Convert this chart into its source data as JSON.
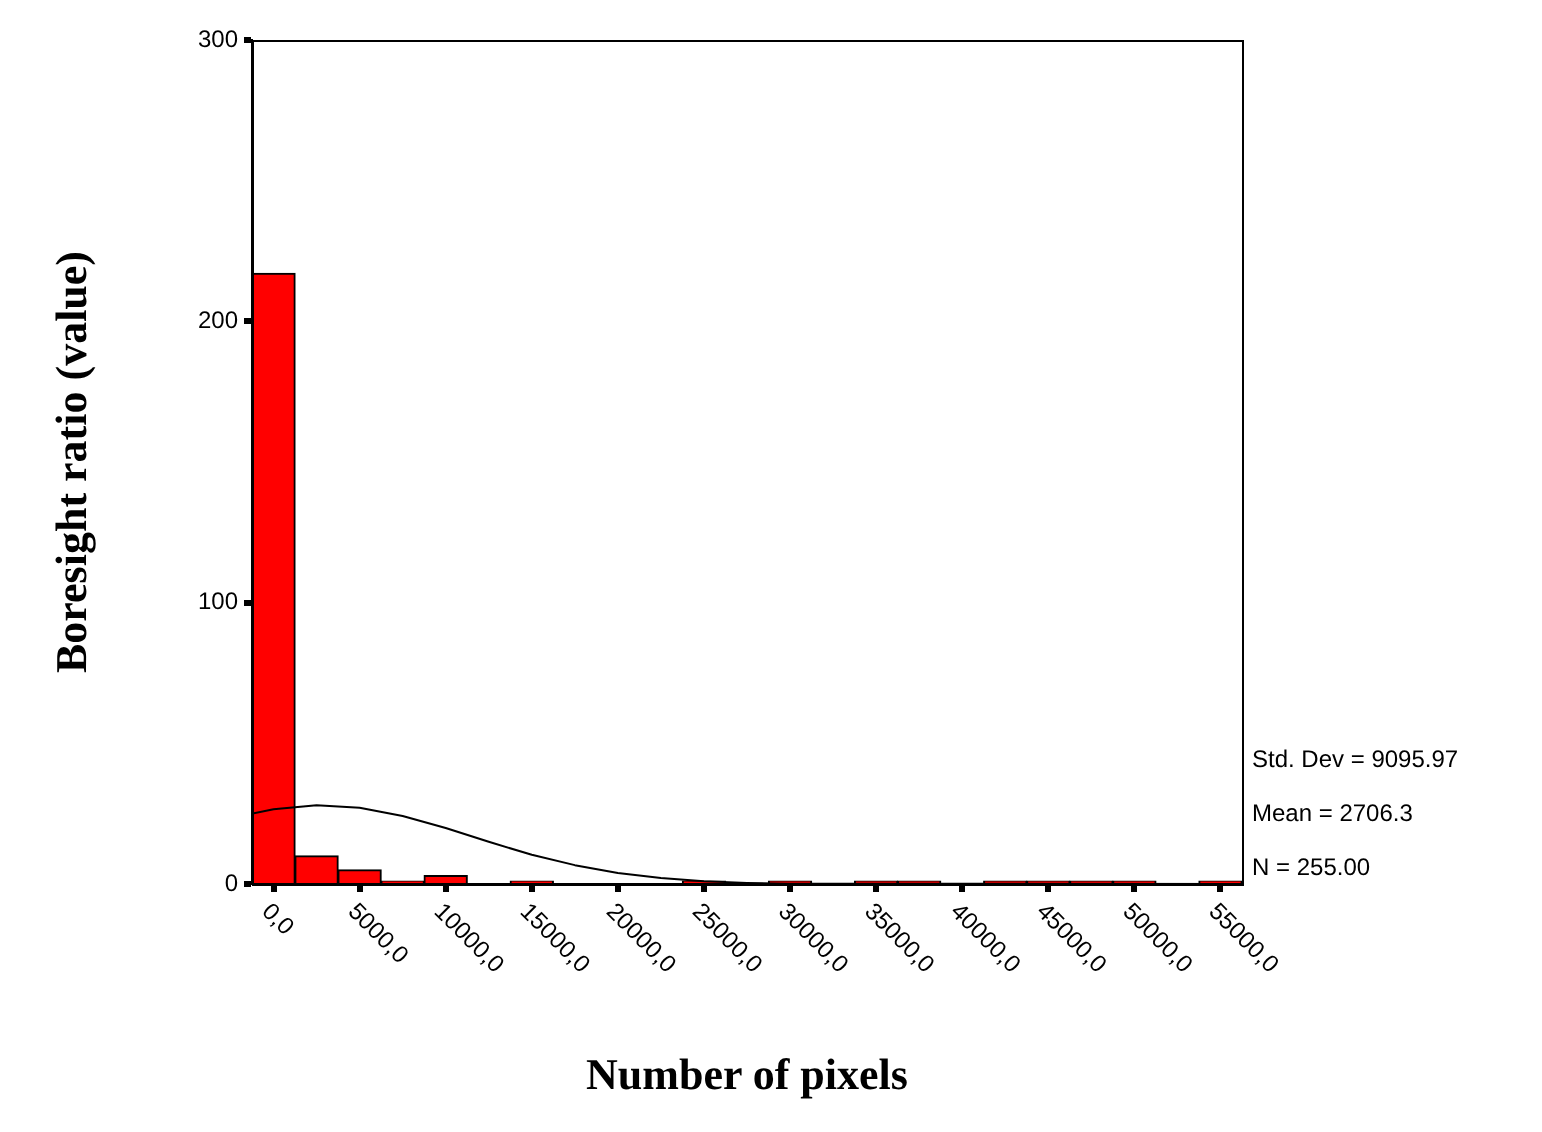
{
  "chart_data": {
    "type": "histogram",
    "xlabel": "Number of pixels",
    "ylabel": "Boresight ratio (value)",
    "bins": [
      -1250,
      1250,
      3750,
      6250,
      8750,
      11250,
      13750,
      16250,
      18750,
      21250,
      23750,
      26250,
      28750,
      31250,
      33750,
      36250,
      38750,
      41250,
      43750,
      46250,
      48750,
      51250,
      53750,
      56250
    ],
    "series": [
      {
        "type": "histogram",
        "color": "#ff0000",
        "values": [
          217,
          10,
          5,
          1,
          3,
          0,
          1,
          0,
          0,
          0,
          1,
          0,
          1,
          0,
          1,
          1,
          0,
          1,
          1,
          1,
          1,
          0,
          1
        ]
      },
      {
        "type": "line",
        "color": "#000000",
        "x": [
          -1250,
          0,
          2500,
          5000,
          7500,
          10000,
          12500,
          15000,
          17500,
          20000,
          22500,
          25000,
          27500,
          30000,
          56250
        ],
        "values": [
          25,
          26.6,
          28,
          27.1,
          24.2,
          19.9,
          15,
          10.4,
          6.7,
          3.9,
          2.1,
          1,
          0.4,
          0.1,
          0
        ]
      }
    ],
    "xlim": [
      -1250,
      56250
    ],
    "xticks": [
      {
        "value": 0,
        "label": "0,0"
      },
      {
        "value": 5000,
        "label": "5000,0"
      },
      {
        "value": 10000,
        "label": "10000,0"
      },
      {
        "value": 15000,
        "label": "15000,0"
      },
      {
        "value": 20000,
        "label": "20000,0"
      },
      {
        "value": 25000,
        "label": "25000,0"
      },
      {
        "value": 30000,
        "label": "30000,0"
      },
      {
        "value": 35000,
        "label": "35000,0"
      },
      {
        "value": 40000,
        "label": "40000,0"
      },
      {
        "value": 45000,
        "label": "45000,0"
      },
      {
        "value": 50000,
        "label": "50000,0"
      },
      {
        "value": 55000,
        "label": "55000,0"
      }
    ],
    "ylim": [
      0,
      300
    ],
    "yticks": [
      0,
      100,
      200,
      300
    ],
    "grid": false,
    "legend": false,
    "marker": "none",
    "line_style": "solid",
    "annotations": [
      "Std. Dev = 9095.97",
      "Mean = 2706.3",
      "N = 255.00"
    ]
  }
}
